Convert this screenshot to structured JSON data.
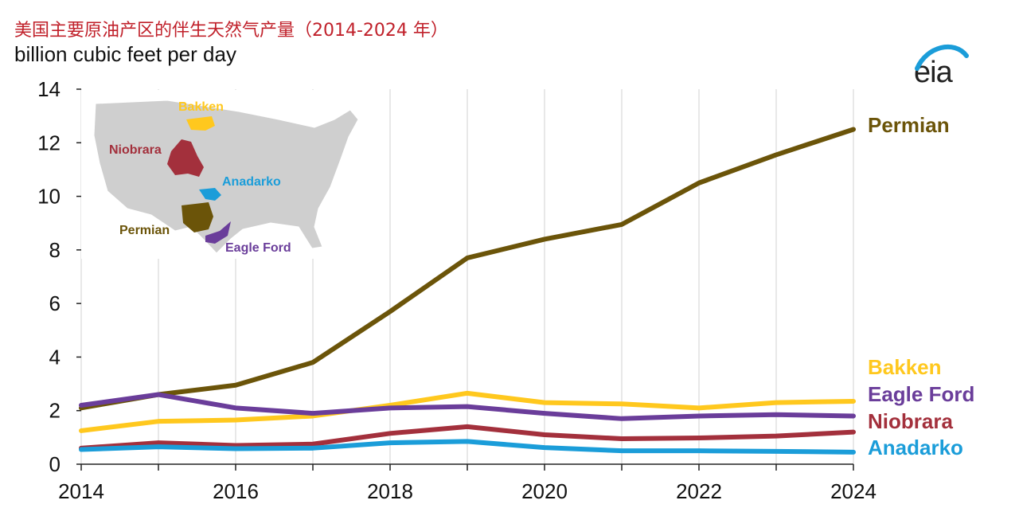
{
  "header": {
    "title": "美国主要原油产区的伴生天然气产量（2014-2024 年）",
    "units": "billion cubic feet per day",
    "logo_text": "eia"
  },
  "colors": {
    "Permian": "#6b5409",
    "Bakken": "#ffc81e",
    "Eagle Ford": "#6a3d9a",
    "Niobrara": "#a3303c",
    "Anadarko": "#1b9dd9"
  },
  "chart_data": {
    "type": "line",
    "title": "美国主要原油产区的伴生天然气产量（2014-2024 年）",
    "ylabel": "billion cubic feet per day",
    "xlabel": "",
    "x": [
      2014,
      2015,
      2016,
      2017,
      2018,
      2019,
      2020,
      2021,
      2022,
      2023,
      2024
    ],
    "xlim": [
      2014,
      2024
    ],
    "ylim": [
      0,
      14
    ],
    "xticks": [
      "2014",
      "2016",
      "2018",
      "2020",
      "2022",
      "2024"
    ],
    "yticks": [
      "0",
      "2",
      "4",
      "6",
      "8",
      "10",
      "12",
      "14"
    ],
    "grid": "vertical",
    "series": [
      {
        "name": "Permian",
        "values": [
          2.1,
          2.6,
          2.95,
          3.8,
          5.7,
          7.7,
          8.4,
          8.95,
          10.5,
          11.55,
          12.5
        ]
      },
      {
        "name": "Bakken",
        "values": [
          1.25,
          1.6,
          1.65,
          1.8,
          2.2,
          2.65,
          2.3,
          2.25,
          2.1,
          2.3,
          2.35
        ]
      },
      {
        "name": "Eagle Ford",
        "values": [
          2.2,
          2.6,
          2.1,
          1.9,
          2.1,
          2.15,
          1.9,
          1.7,
          1.8,
          1.85,
          1.8
        ]
      },
      {
        "name": "Niobrara",
        "values": [
          0.6,
          0.8,
          0.7,
          0.75,
          1.15,
          1.4,
          1.1,
          0.95,
          0.98,
          1.05,
          1.2
        ]
      },
      {
        "name": "Anadarko",
        "values": [
          0.55,
          0.65,
          0.58,
          0.6,
          0.8,
          0.85,
          0.62,
          0.5,
          0.5,
          0.48,
          0.45
        ]
      }
    ],
    "labels_order": [
      "Permian",
      "Bakken",
      "Eagle Ford",
      "Niobrara",
      "Anadarko"
    ]
  },
  "inset_map": {
    "regions": [
      "Bakken",
      "Niobrara",
      "Anadarko",
      "Permian",
      "Eagle Ford"
    ]
  }
}
